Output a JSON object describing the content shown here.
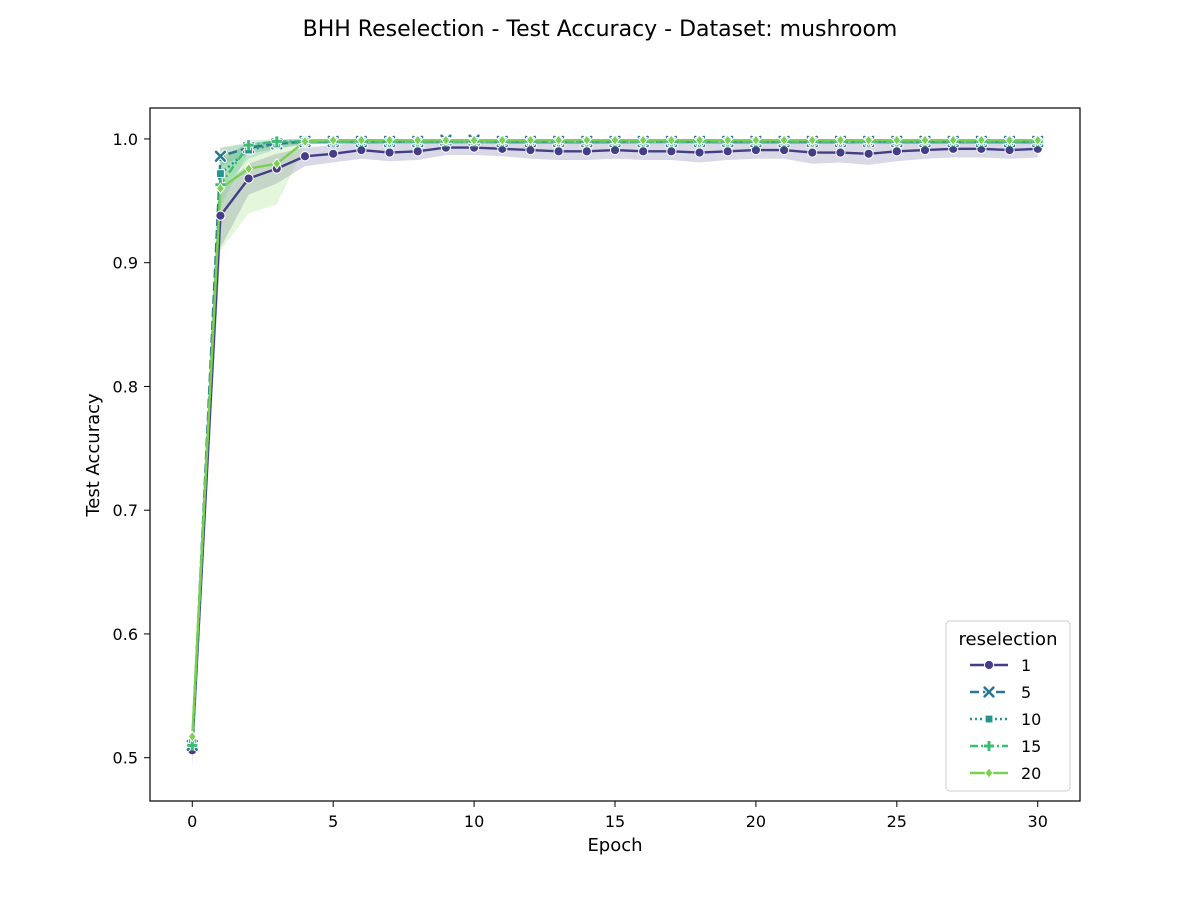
{
  "chart_data": {
    "type": "line",
    "title": "BHH Reselection - Test Accuracy - Dataset: mushroom",
    "xlabel": "Epoch",
    "ylabel": "Test Accuracy",
    "xlim": [
      -1.5,
      31.5
    ],
    "ylim": [
      0.465,
      1.025
    ],
    "xticks": [
      0,
      5,
      10,
      15,
      20,
      25,
      30
    ],
    "xtick_labels": [
      "0",
      "5",
      "10",
      "15",
      "20",
      "25",
      "30"
    ],
    "yticks": [
      0.5,
      0.6,
      0.7,
      0.8,
      0.9,
      1.0
    ],
    "ytick_labels": [
      "0.5",
      "0.6",
      "0.7",
      "0.8",
      "0.9",
      "1.0"
    ],
    "grid": false,
    "legend": {
      "title": "reselection",
      "position": "lower-right"
    },
    "series": [
      {
        "name": "1",
        "color": "#433e85",
        "marker": "circle",
        "dash": "solid",
        "x": [
          0,
          1,
          2,
          3,
          4,
          5,
          6,
          7,
          8,
          9,
          10,
          11,
          12,
          13,
          14,
          15,
          16,
          17,
          18,
          19,
          20,
          21,
          22,
          23,
          24,
          25,
          26,
          27,
          28,
          29,
          30
        ],
        "y": [
          0.506,
          0.938,
          0.968,
          0.976,
          0.986,
          0.988,
          0.991,
          0.989,
          0.99,
          0.993,
          0.993,
          0.992,
          0.991,
          0.99,
          0.99,
          0.991,
          0.99,
          0.99,
          0.989,
          0.99,
          0.991,
          0.991,
          0.989,
          0.989,
          0.988,
          0.99,
          0.991,
          0.992,
          0.992,
          0.991,
          0.992
        ],
        "ci_low": [
          0.492,
          0.912,
          0.955,
          0.964,
          0.978,
          0.981,
          0.984,
          0.982,
          0.983,
          0.987,
          0.987,
          0.986,
          0.984,
          0.983,
          0.983,
          0.984,
          0.983,
          0.983,
          0.981,
          0.983,
          0.984,
          0.984,
          0.98,
          0.981,
          0.979,
          0.982,
          0.984,
          0.985,
          0.985,
          0.984,
          0.985
        ],
        "ci_high": [
          0.52,
          0.96,
          0.98,
          0.988,
          0.993,
          0.995,
          0.997,
          0.996,
          0.996,
          0.999,
          0.999,
          0.998,
          0.997,
          0.997,
          0.997,
          0.997,
          0.996,
          0.996,
          0.996,
          0.997,
          0.998,
          0.998,
          0.997,
          0.997,
          0.996,
          0.997,
          0.998,
          0.999,
          0.999,
          0.998,
          0.999
        ]
      },
      {
        "name": "5",
        "color": "#2a788e",
        "marker": "x",
        "dash": "dashed",
        "x": [
          0,
          1,
          2,
          3,
          4,
          5,
          6,
          7,
          8,
          9,
          10,
          11,
          12,
          13,
          14,
          15,
          16,
          17,
          18,
          19,
          20,
          21,
          22,
          23,
          24,
          25,
          26,
          27,
          28,
          29,
          30
        ],
        "y": [
          0.51,
          0.986,
          0.993,
          0.996,
          0.998,
          0.998,
          0.998,
          0.998,
          0.998,
          0.999,
          0.999,
          0.998,
          0.998,
          0.998,
          0.998,
          0.998,
          0.998,
          0.998,
          0.998,
          0.998,
          0.998,
          0.998,
          0.998,
          0.998,
          0.998,
          0.998,
          0.998,
          0.998,
          0.998,
          0.998,
          0.998
        ],
        "ci_low": [
          0.5,
          0.978,
          0.988,
          0.992,
          0.996,
          0.996,
          0.996,
          0.996,
          0.996,
          0.997,
          0.997,
          0.996,
          0.996,
          0.996,
          0.996,
          0.996,
          0.996,
          0.996,
          0.996,
          0.996,
          0.996,
          0.996,
          0.996,
          0.996,
          0.996,
          0.996,
          0.996,
          0.996,
          0.996,
          0.996,
          0.996
        ],
        "ci_high": [
          0.52,
          0.993,
          0.997,
          0.999,
          1.0,
          1.0,
          1.0,
          1.0,
          1.0,
          1.0,
          1.0,
          1.0,
          1.0,
          1.0,
          1.0,
          1.0,
          1.0,
          1.0,
          1.0,
          1.0,
          1.0,
          1.0,
          1.0,
          1.0,
          1.0,
          1.0,
          1.0,
          1.0,
          1.0,
          1.0,
          1.0
        ]
      },
      {
        "name": "10",
        "color": "#22968b",
        "marker": "square",
        "dash": "dotted",
        "x": [
          0,
          1,
          2,
          3,
          4,
          5,
          6,
          7,
          8,
          9,
          10,
          11,
          12,
          13,
          14,
          15,
          16,
          17,
          18,
          19,
          20,
          21,
          22,
          23,
          24,
          25,
          26,
          27,
          28,
          29,
          30
        ],
        "y": [
          0.512,
          0.972,
          0.991,
          0.996,
          0.998,
          0.998,
          0.998,
          0.998,
          0.998,
          0.998,
          0.998,
          0.998,
          0.998,
          0.998,
          0.998,
          0.998,
          0.998,
          0.998,
          0.998,
          0.998,
          0.998,
          0.998,
          0.998,
          0.998,
          0.998,
          0.998,
          0.998,
          0.998,
          0.998,
          0.998,
          0.998
        ],
        "ci_low": [
          0.502,
          0.958,
          0.984,
          0.992,
          0.996,
          0.996,
          0.996,
          0.996,
          0.996,
          0.996,
          0.996,
          0.996,
          0.996,
          0.996,
          0.996,
          0.996,
          0.996,
          0.996,
          0.996,
          0.996,
          0.996,
          0.996,
          0.996,
          0.996,
          0.996,
          0.996,
          0.996,
          0.996,
          0.996,
          0.996,
          0.996
        ],
        "ci_high": [
          0.522,
          0.985,
          0.996,
          0.999,
          1.0,
          1.0,
          1.0,
          1.0,
          1.0,
          1.0,
          1.0,
          1.0,
          1.0,
          1.0,
          1.0,
          1.0,
          1.0,
          1.0,
          1.0,
          1.0,
          1.0,
          1.0,
          1.0,
          1.0,
          1.0,
          1.0,
          1.0,
          1.0,
          1.0,
          1.0,
          1.0
        ]
      },
      {
        "name": "15",
        "color": "#3dbc74",
        "marker": "plus",
        "dash": "dashdot",
        "x": [
          0,
          1,
          2,
          3,
          4,
          5,
          6,
          7,
          8,
          9,
          10,
          11,
          12,
          13,
          14,
          15,
          16,
          17,
          18,
          19,
          20,
          21,
          22,
          23,
          24,
          25,
          26,
          27,
          28,
          29,
          30
        ],
        "y": [
          0.51,
          0.963,
          0.995,
          0.998,
          0.998,
          0.998,
          0.998,
          0.998,
          0.998,
          0.998,
          0.998,
          0.998,
          0.998,
          0.998,
          0.998,
          0.998,
          0.998,
          0.998,
          0.998,
          0.998,
          0.998,
          0.998,
          0.998,
          0.998,
          0.998,
          0.998,
          0.998,
          0.998,
          0.998,
          0.998,
          0.998
        ],
        "ci_low": [
          0.5,
          0.945,
          0.99,
          0.995,
          0.996,
          0.996,
          0.996,
          0.996,
          0.996,
          0.996,
          0.996,
          0.996,
          0.996,
          0.996,
          0.996,
          0.996,
          0.996,
          0.996,
          0.996,
          0.996,
          0.996,
          0.996,
          0.996,
          0.996,
          0.996,
          0.996,
          0.996,
          0.996,
          0.996,
          0.996,
          0.996
        ],
        "ci_high": [
          0.52,
          0.98,
          0.999,
          1.0,
          1.0,
          1.0,
          1.0,
          1.0,
          1.0,
          1.0,
          1.0,
          1.0,
          1.0,
          1.0,
          1.0,
          1.0,
          1.0,
          1.0,
          1.0,
          1.0,
          1.0,
          1.0,
          1.0,
          1.0,
          1.0,
          1.0,
          1.0,
          1.0,
          1.0,
          1.0,
          1.0
        ]
      },
      {
        "name": "20",
        "color": "#7ad151",
        "marker": "diamond",
        "dash": "solid",
        "x": [
          0,
          1,
          2,
          3,
          4,
          5,
          6,
          7,
          8,
          9,
          10,
          11,
          12,
          13,
          14,
          15,
          16,
          17,
          18,
          19,
          20,
          21,
          22,
          23,
          24,
          25,
          26,
          27,
          28,
          29,
          30
        ],
        "y": [
          0.517,
          0.96,
          0.976,
          0.98,
          0.998,
          0.999,
          0.999,
          0.999,
          0.999,
          0.999,
          0.999,
          0.999,
          0.999,
          0.999,
          0.999,
          0.999,
          0.999,
          0.999,
          0.999,
          0.999,
          0.999,
          0.999,
          0.999,
          0.999,
          0.999,
          0.999,
          0.999,
          0.999,
          0.999,
          0.999,
          0.999
        ],
        "ci_low": [
          0.505,
          0.91,
          0.94,
          0.947,
          0.995,
          0.997,
          0.997,
          0.997,
          0.997,
          0.997,
          0.997,
          0.997,
          0.997,
          0.997,
          0.997,
          0.997,
          0.997,
          0.997,
          0.997,
          0.997,
          0.997,
          0.997,
          0.997,
          0.997,
          0.997,
          0.997,
          0.997,
          0.997,
          0.997,
          0.997,
          0.997
        ],
        "ci_high": [
          0.53,
          0.993,
          0.996,
          0.997,
          1.0,
          1.0,
          1.0,
          1.0,
          1.0,
          1.0,
          1.0,
          1.0,
          1.0,
          1.0,
          1.0,
          1.0,
          1.0,
          1.0,
          1.0,
          1.0,
          1.0,
          1.0,
          1.0,
          1.0,
          1.0,
          1.0,
          1.0,
          1.0,
          1.0,
          1.0,
          1.0
        ]
      }
    ]
  }
}
